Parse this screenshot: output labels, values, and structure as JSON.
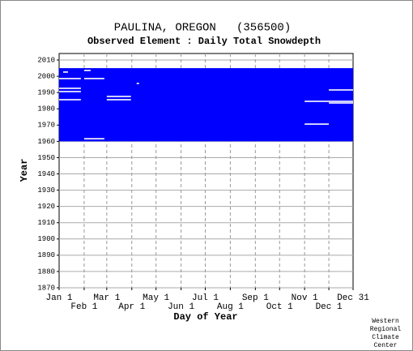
{
  "chart_data": {
    "type": "coverage",
    "title": "PAULINA, OREGON   (356500)",
    "subtitle": "Observed Element : Daily Total Snowdepth",
    "x_label": "Day of Year",
    "y_label": "Year",
    "credit": [
      "Western",
      "Regional",
      "Climate",
      "Center"
    ],
    "color": "#0000ff",
    "xlim": [
      1,
      365
    ],
    "xticks": [
      {
        "value": 1,
        "label": "Jan 1"
      },
      {
        "value": 32,
        "label": "Feb 1"
      },
      {
        "value": 60,
        "label": "Mar 1"
      },
      {
        "value": 91,
        "label": "Apr 1"
      },
      {
        "value": 121,
        "label": "May 1"
      },
      {
        "value": 152,
        "label": "Jun 1"
      },
      {
        "value": 182,
        "label": "Jul 1"
      },
      {
        "value": 213,
        "label": "Aug 1"
      },
      {
        "value": 244,
        "label": "Sep 1"
      },
      {
        "value": 274,
        "label": "Oct 1"
      },
      {
        "value": 305,
        "label": "Nov 1"
      },
      {
        "value": 335,
        "label": "Dec 1"
      },
      {
        "value": 365,
        "label": "Dec 31"
      }
    ],
    "ylim": [
      1870,
      2014
    ],
    "yticks": [
      1870,
      1880,
      1890,
      1900,
      1910,
      1920,
      1930,
      1940,
      1950,
      1960,
      1970,
      1980,
      1990,
      2000,
      2010
    ],
    "grid": true,
    "coverage": [
      {
        "years": [
          1960,
          2004
        ],
        "days": [
          1,
          365
        ]
      }
    ],
    "gaps": [
      [
        1998,
        1,
        28
      ],
      [
        1998,
        32,
        57
      ],
      [
        1992,
        1,
        28
      ],
      [
        1990,
        1,
        28
      ],
      [
        1987,
        60,
        90
      ],
      [
        1985,
        1,
        28
      ],
      [
        1985,
        60,
        90
      ],
      [
        1984,
        305,
        365
      ],
      [
        1983,
        335,
        365
      ],
      [
        1991,
        335,
        365
      ],
      [
        1970,
        305,
        335
      ],
      [
        1961,
        32,
        57
      ],
      [
        1995,
        97,
        100
      ],
      [
        2002,
        6,
        12
      ],
      [
        2003,
        32,
        40
      ]
    ]
  }
}
